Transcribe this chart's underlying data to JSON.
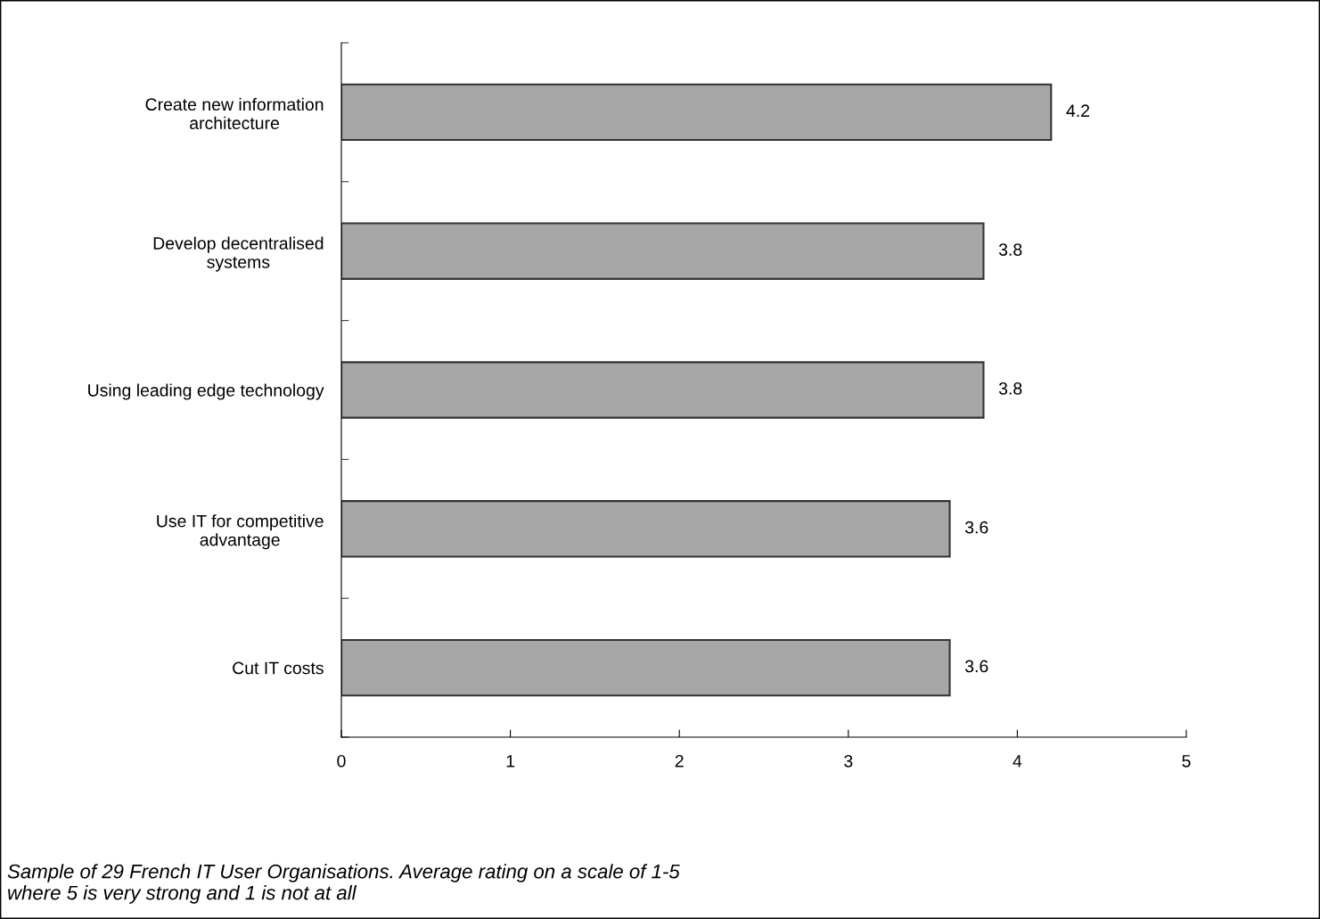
{
  "chart_data": {
    "type": "bar",
    "orientation": "horizontal",
    "categories": [
      "Create new information\narchitecture",
      "Develop decentralised\nsystems",
      "Using leading edge technology",
      "Use IT for competitive\nadvantage",
      "Cut IT costs"
    ],
    "values": [
      4.2,
      3.8,
      3.8,
      3.6,
      3.6
    ],
    "color": "#a6a6a6",
    "xlim": [
      0,
      5
    ],
    "xticks": [
      0,
      1,
      2,
      3,
      4,
      5
    ],
    "grid": false,
    "legend": false,
    "data_labels": true,
    "annotations": [
      "Sample of 29 French IT User Organisations. Average rating on a scale of 1-5\nwhere 5 is very strong and 1 is not at all"
    ]
  }
}
